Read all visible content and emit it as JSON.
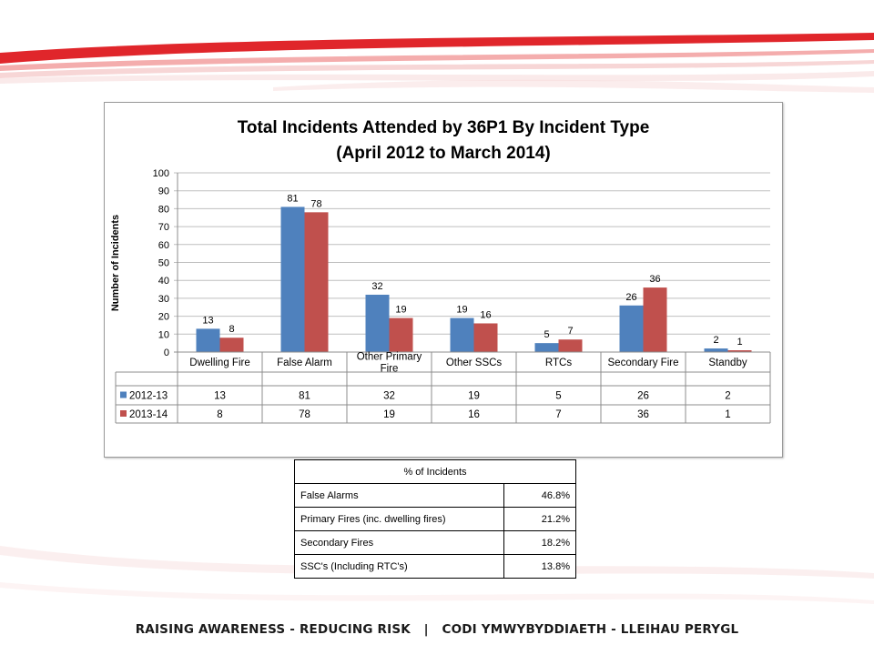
{
  "chart_data": {
    "type": "bar",
    "title": "Total Incidents Attended by 36P1 By Incident Type",
    "subtitle": "(April 2012 to March 2014)",
    "ylabel": "Number of Incidents",
    "ylim": [
      0,
      100
    ],
    "yticks": [
      0,
      10,
      20,
      30,
      40,
      50,
      60,
      70,
      80,
      90,
      100
    ],
    "grid": true,
    "legend": "data-table-below",
    "categories": [
      [
        "Dwelling Fire"
      ],
      [
        "False Alarm"
      ],
      [
        "Other Primary",
        "Fire"
      ],
      [
        "Other SSCs"
      ],
      [
        "RTCs"
      ],
      [
        "Secondary Fire"
      ],
      [
        "Standby"
      ]
    ],
    "series": [
      {
        "name": "2012-13",
        "color": "#4f81bd",
        "values": [
          13,
          81,
          32,
          19,
          5,
          26,
          2
        ]
      },
      {
        "name": "2013-14",
        "color": "#c0504d",
        "values": [
          8,
          78,
          19,
          16,
          7,
          36,
          1
        ]
      }
    ]
  },
  "pct_table": {
    "header": "% of Incidents",
    "rows": [
      {
        "label": "False Alarms",
        "value": "46.8%"
      },
      {
        "label": "Primary Fires (inc. dwelling fires)",
        "value": "21.2%"
      },
      {
        "label": "Secondary Fires",
        "value": "18.2%"
      },
      {
        "label": "SSC's (Including RTC's)",
        "value": "13.8%"
      }
    ]
  },
  "footer": {
    "text": "RAISING AWARENESS - REDUCING RISK   |   CODI YMWYBYDDIAETH - LLEIHAU PERYGL"
  },
  "theme": {
    "swoosh_red": "#e0262b",
    "swoosh_pink": "#f4c4c4"
  }
}
